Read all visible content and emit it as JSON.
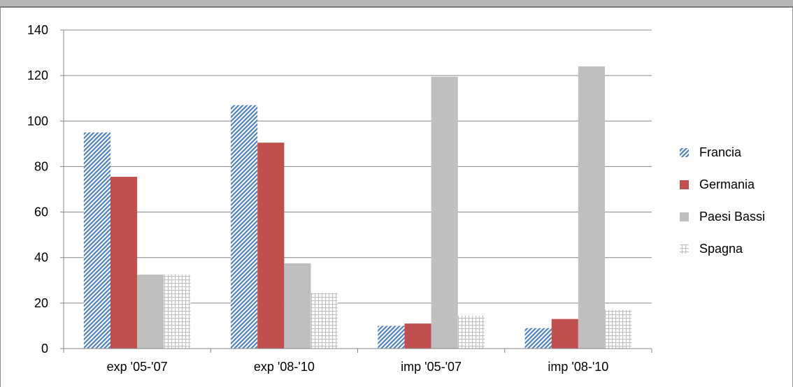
{
  "chart_data": {
    "type": "bar",
    "title": "",
    "xlabel": "",
    "ylabel": "",
    "categories": [
      "exp '05-'07",
      "exp '08-'10",
      "imp '05-'07",
      "imp '08-'10"
    ],
    "series": [
      {
        "name": "Francia",
        "values": [
          95,
          107,
          10,
          9
        ],
        "color": "#4f81bd",
        "pattern": "diagonal-stripes"
      },
      {
        "name": "Germania",
        "values": [
          75.5,
          90.5,
          11,
          13
        ],
        "color": "#c0504d",
        "pattern": "solid"
      },
      {
        "name": "Paesi Bassi",
        "values": [
          32.5,
          37.5,
          119.5,
          124
        ],
        "color": "#bfbfbf",
        "pattern": "solid"
      },
      {
        "name": "Spagna",
        "values": [
          32.5,
          24.5,
          14.5,
          17
        ],
        "color": "#bfbfbf",
        "pattern": "grid"
      }
    ],
    "ylim": [
      0,
      140
    ],
    "yticks": [
      0,
      20,
      40,
      60,
      80,
      100,
      120,
      140
    ],
    "grid": true,
    "legend_position": "right"
  }
}
